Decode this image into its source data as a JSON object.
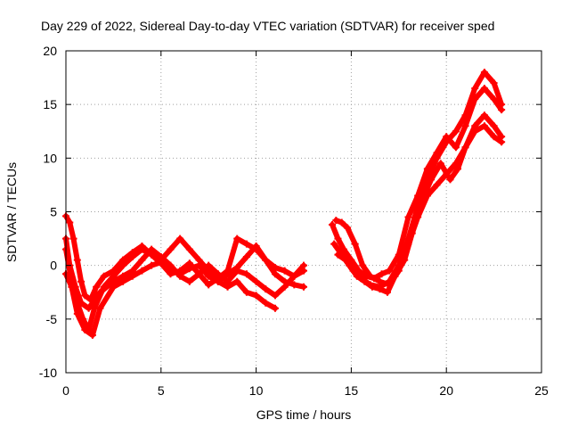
{
  "chart_data": {
    "type": "scatter",
    "title": "Day 229 of 2022, Sidereal Day-to-day VTEC variation (SDTVAR) for receiver sped",
    "xlabel": "GPS time / hours",
    "ylabel": "SDTVAR / TECUs",
    "xlim": [
      0,
      25
    ],
    "ylim": [
      -10,
      20
    ],
    "xticks": [
      0,
      5,
      10,
      15,
      20,
      25
    ],
    "xtick_labels": [
      "0",
      "5",
      "10",
      "15",
      "20",
      "25"
    ],
    "yticks": [
      -10,
      -5,
      0,
      5,
      10,
      15,
      20
    ],
    "ytick_labels": [
      "-10",
      "-5",
      "0",
      "5",
      "10",
      "15",
      "20"
    ],
    "grid": true,
    "marker_color": "#ff0000",
    "series": [
      {
        "name": "trace-1",
        "x": [
          0.0,
          0.2,
          0.4,
          0.6,
          0.8,
          1.0,
          1.3,
          1.6,
          2.0,
          2.5,
          3.0,
          3.5,
          4.0,
          4.5,
          5.0,
          5.5,
          6.0,
          6.5,
          7.0,
          7.5,
          8.0,
          8.5,
          9.0,
          9.5,
          10.0,
          10.5,
          11.0,
          11.5,
          12.0,
          12.5
        ],
        "y": [
          4.6,
          4.0,
          2.5,
          0.5,
          -1.5,
          -2.8,
          -3.2,
          -2.0,
          -1.0,
          -0.5,
          0.5,
          1.2,
          1.8,
          1.0,
          0.2,
          -0.8,
          -0.5,
          0.2,
          -0.8,
          -1.8,
          -1.2,
          -0.5,
          2.5,
          2.0,
          1.5,
          0.5,
          -0.8,
          -1.5,
          -1.8,
          -2.0
        ]
      },
      {
        "name": "trace-2",
        "x": [
          0.0,
          0.3,
          0.6,
          0.9,
          1.2,
          1.5,
          2.0,
          2.5,
          3.0,
          3.5,
          4.0,
          4.5,
          5.0,
          5.5,
          6.0,
          6.5,
          7.0,
          7.5,
          8.0,
          8.5,
          9.0,
          9.5,
          10.0,
          10.5,
          11.0,
          11.5,
          12.0,
          12.5
        ],
        "y": [
          1.5,
          -1.5,
          -3.5,
          -5.0,
          -6.0,
          -4.0,
          -2.0,
          -1.0,
          0.0,
          0.8,
          1.5,
          1.0,
          0.5,
          1.5,
          2.5,
          1.5,
          0.5,
          -0.5,
          -1.5,
          -0.8,
          -0.2,
          0.8,
          1.8,
          0.5,
          -0.2,
          -0.5,
          -1.0,
          -0.5
        ]
      },
      {
        "name": "trace-3",
        "x": [
          0.0,
          0.2,
          0.5,
          0.8,
          1.2,
          1.8,
          2.5,
          3.0,
          3.5,
          4.0,
          4.5,
          5.0,
          5.5,
          6.0,
          6.5,
          7.0,
          7.5,
          8.0,
          8.5,
          9.0,
          9.5,
          10.0,
          10.5,
          11.0,
          11.5,
          12.0,
          12.5
        ],
        "y": [
          2.5,
          0.0,
          -2.0,
          -3.5,
          -4.0,
          -2.5,
          -1.5,
          -1.0,
          -0.5,
          0.5,
          1.5,
          0.8,
          0.0,
          -1.0,
          -1.5,
          -0.8,
          0.0,
          -0.8,
          -1.5,
          -0.5,
          -0.8,
          -1.5,
          -2.2,
          -2.8,
          -2.0,
          -1.0,
          0.0
        ]
      },
      {
        "name": "trace-4",
        "x": [
          0.0,
          0.3,
          0.6,
          1.0,
          1.4,
          1.8,
          2.5,
          3.0,
          3.5,
          4.0,
          4.5,
          5.0,
          5.5,
          6.0,
          6.5,
          7.0,
          7.5,
          8.0,
          8.5,
          9.0,
          9.5,
          10.0,
          10.5,
          11.0
        ],
        "y": [
          -0.8,
          -2.0,
          -4.5,
          -6.0,
          -6.5,
          -4.0,
          -2.0,
          -1.5,
          -1.0,
          -0.5,
          0.0,
          0.3,
          -0.5,
          -0.8,
          -0.3,
          0.0,
          -1.0,
          -1.5,
          -2.0,
          -1.5,
          -2.5,
          -2.8,
          -3.5,
          -4.0
        ]
      },
      {
        "name": "trace-5",
        "x": [
          14.2,
          14.5,
          14.8,
          15.2,
          15.6,
          16.0,
          16.5,
          17.0,
          17.5,
          18.0,
          18.5,
          19.0,
          19.5,
          20.0,
          20.5,
          21.0,
          21.5,
          22.0,
          22.5,
          22.9
        ],
        "y": [
          4.2,
          4.0,
          3.5,
          2.0,
          0.0,
          -1.0,
          -1.5,
          -1.8,
          -0.5,
          2.5,
          5.5,
          8.0,
          10.0,
          11.5,
          12.5,
          14.0,
          16.5,
          18.0,
          17.0,
          15.0
        ]
      },
      {
        "name": "trace-6",
        "x": [
          14.0,
          14.3,
          14.6,
          15.0,
          15.4,
          15.8,
          16.2,
          16.6,
          17.0,
          17.5,
          18.0,
          18.5,
          19.0,
          19.5,
          20.0,
          20.5,
          21.0,
          21.5,
          22.0,
          22.5,
          22.9
        ],
        "y": [
          3.8,
          2.5,
          1.5,
          0.5,
          -0.5,
          -1.0,
          -1.2,
          -0.8,
          -0.5,
          1.0,
          4.5,
          6.5,
          9.0,
          10.5,
          12.0,
          11.0,
          13.0,
          15.5,
          16.5,
          15.5,
          14.5
        ]
      },
      {
        "name": "trace-7",
        "x": [
          14.1,
          14.5,
          14.9,
          15.3,
          15.7,
          16.1,
          16.5,
          16.9,
          17.3,
          17.8,
          18.2,
          18.7,
          19.2,
          19.7,
          20.2,
          20.6,
          21.0,
          21.5,
          22.0,
          22.5,
          22.9
        ],
        "y": [
          2.0,
          1.0,
          0.0,
          -1.0,
          -1.5,
          -2.0,
          -2.2,
          -2.5,
          -1.0,
          0.5,
          3.0,
          6.0,
          8.0,
          9.5,
          8.0,
          9.0,
          11.0,
          13.0,
          14.0,
          13.0,
          12.0
        ]
      },
      {
        "name": "trace-8",
        "x": [
          14.3,
          14.7,
          15.1,
          15.5,
          16.0,
          16.5,
          17.0,
          17.5,
          18.0,
          18.5,
          19.0,
          19.5,
          20.0,
          20.5,
          21.0,
          21.5,
          22.0,
          22.5,
          22.9
        ],
        "y": [
          1.0,
          0.5,
          -0.5,
          -1.2,
          -1.8,
          -2.0,
          -1.5,
          0.0,
          2.0,
          4.5,
          6.5,
          7.5,
          8.5,
          9.5,
          11.0,
          12.5,
          13.0,
          12.0,
          11.5
        ]
      }
    ]
  }
}
